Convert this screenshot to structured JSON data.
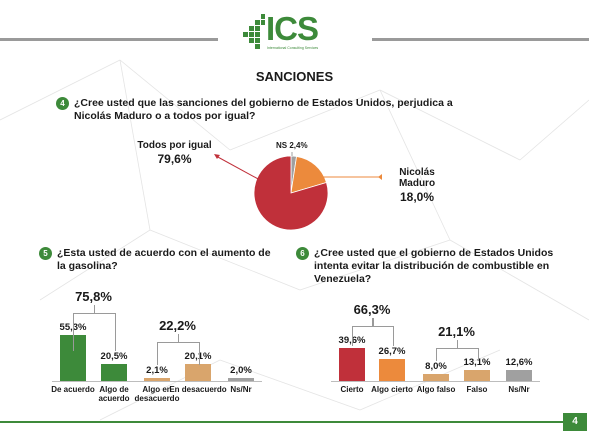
{
  "header": {
    "logo_text": "ICS",
    "logo_subtitle": "International Consulting Services"
  },
  "section_title": "SANCIONES",
  "page_number": "4",
  "colors": {
    "green": "#3d8a3a",
    "dark_red": "#c0303a",
    "orange": "#ec8a3c",
    "tan": "#d9a56c",
    "gray": "#a0a0a0"
  },
  "chart_data": [
    {
      "type": "pie",
      "question_number": "4",
      "question": "¿Cree usted que las sanciones del gobierno de Estados Unidos, perjudica a Nicolás Maduro o a todos por igual?",
      "slices": [
        {
          "label": "Todos por igual",
          "value": 79.6,
          "value_label": "79,6%",
          "color": "#c0303a"
        },
        {
          "label": "Nicolás Maduro",
          "value": 18.0,
          "value_label": "18,0%",
          "color": "#ec8a3c"
        },
        {
          "label": "NS",
          "value": 2.4,
          "value_label": "2,4%",
          "color": "#a0a0a0"
        }
      ]
    },
    {
      "type": "bar",
      "question_number": "5",
      "question": "¿Esta usted de acuerdo con el aumento de la gasolina?",
      "categories": [
        "De acuerdo",
        "Algo de acuerdo",
        "Algo en desacuerdo",
        "En desacuerdo",
        "Ns/Nr"
      ],
      "values": [
        55.3,
        20.5,
        2.1,
        20.1,
        2.0
      ],
      "value_labels": [
        "55,3%",
        "20,5%",
        "2,1%",
        "20,1%",
        "2,0%"
      ],
      "colors": [
        "#3d8a3a",
        "#3d8a3a",
        "#d9a56c",
        "#d9a56c",
        "#a0a0a0"
      ],
      "groups": [
        {
          "label": "75,8%",
          "from": 0,
          "to": 1
        },
        {
          "label": "22,2%",
          "from": 2,
          "to": 3
        }
      ]
    },
    {
      "type": "bar",
      "question_number": "6",
      "question": "¿Cree usted que el gobierno de Estados Unidos intenta evitar la distribución de combustible en Venezuela?",
      "categories": [
        "Cierto",
        "Algo cierto",
        "Algo falso",
        "Falso",
        "Ns/Nr"
      ],
      "values": [
        39.6,
        26.7,
        8.0,
        13.1,
        12.6
      ],
      "value_labels": [
        "39,6%",
        "26,7%",
        "8,0%",
        "13,1%",
        "12,6%"
      ],
      "colors": [
        "#c0303a",
        "#ec8a3c",
        "#d9a56c",
        "#d9a56c",
        "#a0a0a0"
      ],
      "groups": [
        {
          "label": "66,3%",
          "from": 0,
          "to": 1
        },
        {
          "label": "21,1%",
          "from": 2,
          "to": 3
        }
      ]
    }
  ]
}
